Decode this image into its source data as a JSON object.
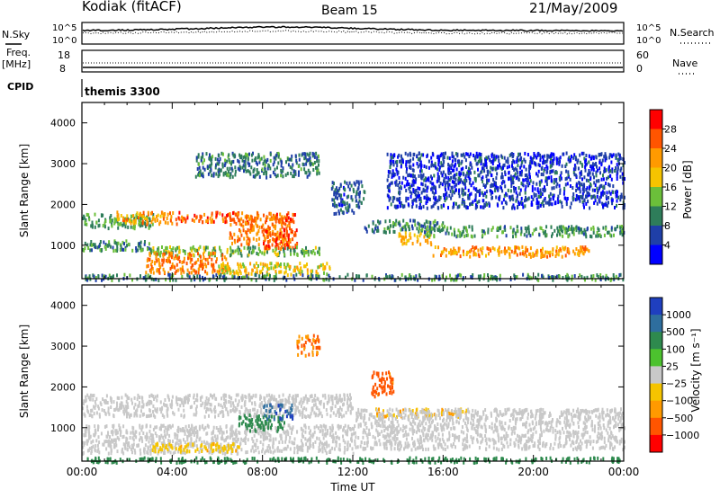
{
  "header": {
    "station": "Kodiak (fitACF)",
    "beam": "Beam 15",
    "date": "21/May/2009"
  },
  "top_panels": {
    "nsky_label": "N.Sky",
    "nsearch_label": "N.Search",
    "nsky_ticks": [
      "10^5",
      "10^0"
    ],
    "nsearch_ticks": [
      "10^5",
      "10^0"
    ],
    "freq_label": "Freq.",
    "freq_unit": "[MHz]",
    "freq_ticks": [
      "18",
      "8"
    ],
    "nave_label": "Nave",
    "nave_ticks": [
      "60",
      "0"
    ],
    "cpid_label": "CPID",
    "cpid_value": "themis 3300"
  },
  "x_axis": {
    "label": "Time UT",
    "ticks": [
      "00:00",
      "04:00",
      "08:00",
      "12:00",
      "16:00",
      "20:00",
      "00:00"
    ],
    "range_hours": [
      0,
      24
    ]
  },
  "colors": {
    "power": [
      "#0000ff",
      "#1f3fa8",
      "#2e7d5a",
      "#6bbf3a",
      "#f5c400",
      "#ff9a00",
      "#ff5500",
      "#ff0000"
    ],
    "velocity": [
      "#1f3fbf",
      "#2e6e9e",
      "#2e8a4e",
      "#4cc22e",
      "#c8c8c8",
      "#f5c400",
      "#ff9a00",
      "#ff5500",
      "#ff0000"
    ]
  },
  "chart_data": [
    {
      "type": "heatmap",
      "title": "Power",
      "xlabel": "Time UT",
      "ylabel": "Slant Range [km]",
      "xlim": [
        0,
        24
      ],
      "ylim": [
        180,
        4500
      ],
      "y_ticks": [
        1000,
        2000,
        3000,
        4000
      ],
      "colorbar": {
        "label": "Power [dB]",
        "ticks": [
          "4",
          "8",
          "12",
          "16",
          "20",
          "24",
          "28"
        ],
        "range": [
          0,
          32
        ]
      },
      "features": [
        {
          "t": [
            0,
            3.2
          ],
          "r": [
            1450,
            1800
          ],
          "value": 12
        },
        {
          "t": [
            1.5,
            4.2
          ],
          "r": [
            1550,
            1850
          ],
          "value": 22
        },
        {
          "t": [
            4.2,
            9.5
          ],
          "r": [
            1600,
            1850
          ],
          "value": 26
        },
        {
          "t": [
            6.5,
            9.2
          ],
          "r": [
            1050,
            1750
          ],
          "value": 24
        },
        {
          "t": [
            8.0,
            9.5
          ],
          "r": [
            950,
            1450
          ],
          "value": 27
        },
        {
          "t": [
            0,
            3.0
          ],
          "r": [
            900,
            1150
          ],
          "value": 10
        },
        {
          "t": [
            3.0,
            10.5
          ],
          "r": [
            780,
            1000
          ],
          "value": 14
        },
        {
          "t": [
            2.8,
            6.5
          ],
          "r": [
            350,
            850
          ],
          "value": 24
        },
        {
          "t": [
            6.0,
            11.0
          ],
          "r": [
            300,
            600
          ],
          "value": 18
        },
        {
          "t": [
            0,
            24
          ],
          "r": [
            180,
            320
          ],
          "value": 10
        },
        {
          "t": [
            12.5,
            16.0
          ],
          "r": [
            1350,
            1650
          ],
          "value": 10
        },
        {
          "t": [
            14.0,
            15.5
          ],
          "r": [
            1050,
            1350
          ],
          "value": 20
        },
        {
          "t": [
            15.5,
            22.5
          ],
          "r": [
            750,
            1000
          ],
          "value": 22
        },
        {
          "t": [
            15.0,
            24
          ],
          "r": [
            1250,
            1500
          ],
          "value": 11
        },
        {
          "t": [
            5.0,
            10.5
          ],
          "r": [
            2700,
            3300
          ],
          "value": 9
        },
        {
          "t": [
            11.0,
            12.5
          ],
          "r": [
            1800,
            2600
          ],
          "value": 7
        },
        {
          "t": [
            13.5,
            24
          ],
          "r": [
            1950,
            3300
          ],
          "value": 5
        }
      ]
    },
    {
      "type": "heatmap",
      "title": "Velocity",
      "xlabel": "Time UT",
      "ylabel": "Slant Range [km]",
      "xlim": [
        0,
        24
      ],
      "ylim": [
        180,
        4500
      ],
      "y_ticks": [
        1000,
        2000,
        3000,
        4000
      ],
      "colorbar": {
        "label": "Velocity [m s⁻¹]",
        "ticks": [
          "1000",
          "500",
          "100",
          "25",
          "−25",
          "−100",
          "−500",
          "−1000"
        ],
        "range": [
          -1000,
          1000
        ]
      },
      "features": [
        {
          "t": [
            0,
            12
          ],
          "r": [
            1300,
            1850
          ],
          "value": 0
        },
        {
          "t": [
            0,
            12
          ],
          "r": [
            400,
            1100
          ],
          "value": 0
        },
        {
          "t": [
            6.8,
            9.0
          ],
          "r": [
            950,
            1350
          ],
          "value": 150
        },
        {
          "t": [
            8.0,
            9.3
          ],
          "r": [
            1250,
            1600
          ],
          "value": 700
        },
        {
          "t": [
            3.0,
            7.0
          ],
          "r": [
            450,
            650
          ],
          "value": -80
        },
        {
          "t": [
            12.8,
            13.8
          ],
          "r": [
            1800,
            2400
          ],
          "value": -400
        },
        {
          "t": [
            13.0,
            17.0
          ],
          "r": [
            1300,
            1500
          ],
          "value": -100
        },
        {
          "t": [
            12,
            24
          ],
          "r": [
            500,
            1500
          ],
          "value": 0
        },
        {
          "t": [
            9.5,
            10.5
          ],
          "r": [
            2800,
            3300
          ],
          "value": -300
        },
        {
          "t": [
            0,
            24
          ],
          "r": [
            180,
            300
          ],
          "value": 150
        }
      ]
    }
  ]
}
